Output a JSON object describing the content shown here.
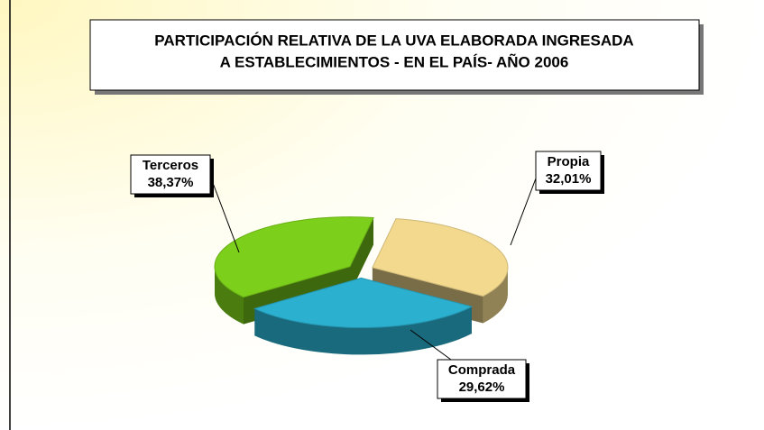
{
  "chart_data": {
    "type": "pie",
    "title": [
      "PARTICIPACIÓN RELATIVA DE LA UVA ELABORADA INGRESADA",
      "A ESTABLECIMIENTOS - EN EL PAÍS- AÑO 2006"
    ],
    "categories": [
      "Propia",
      "Comprada",
      "Terceros"
    ],
    "values": [
      32.01,
      29.62,
      38.37
    ],
    "value_labels": [
      "32,01%",
      "29,62%",
      "38,37%"
    ],
    "colors": [
      "#f2d98e",
      "#2bb0d0",
      "#7ccf1a"
    ]
  }
}
